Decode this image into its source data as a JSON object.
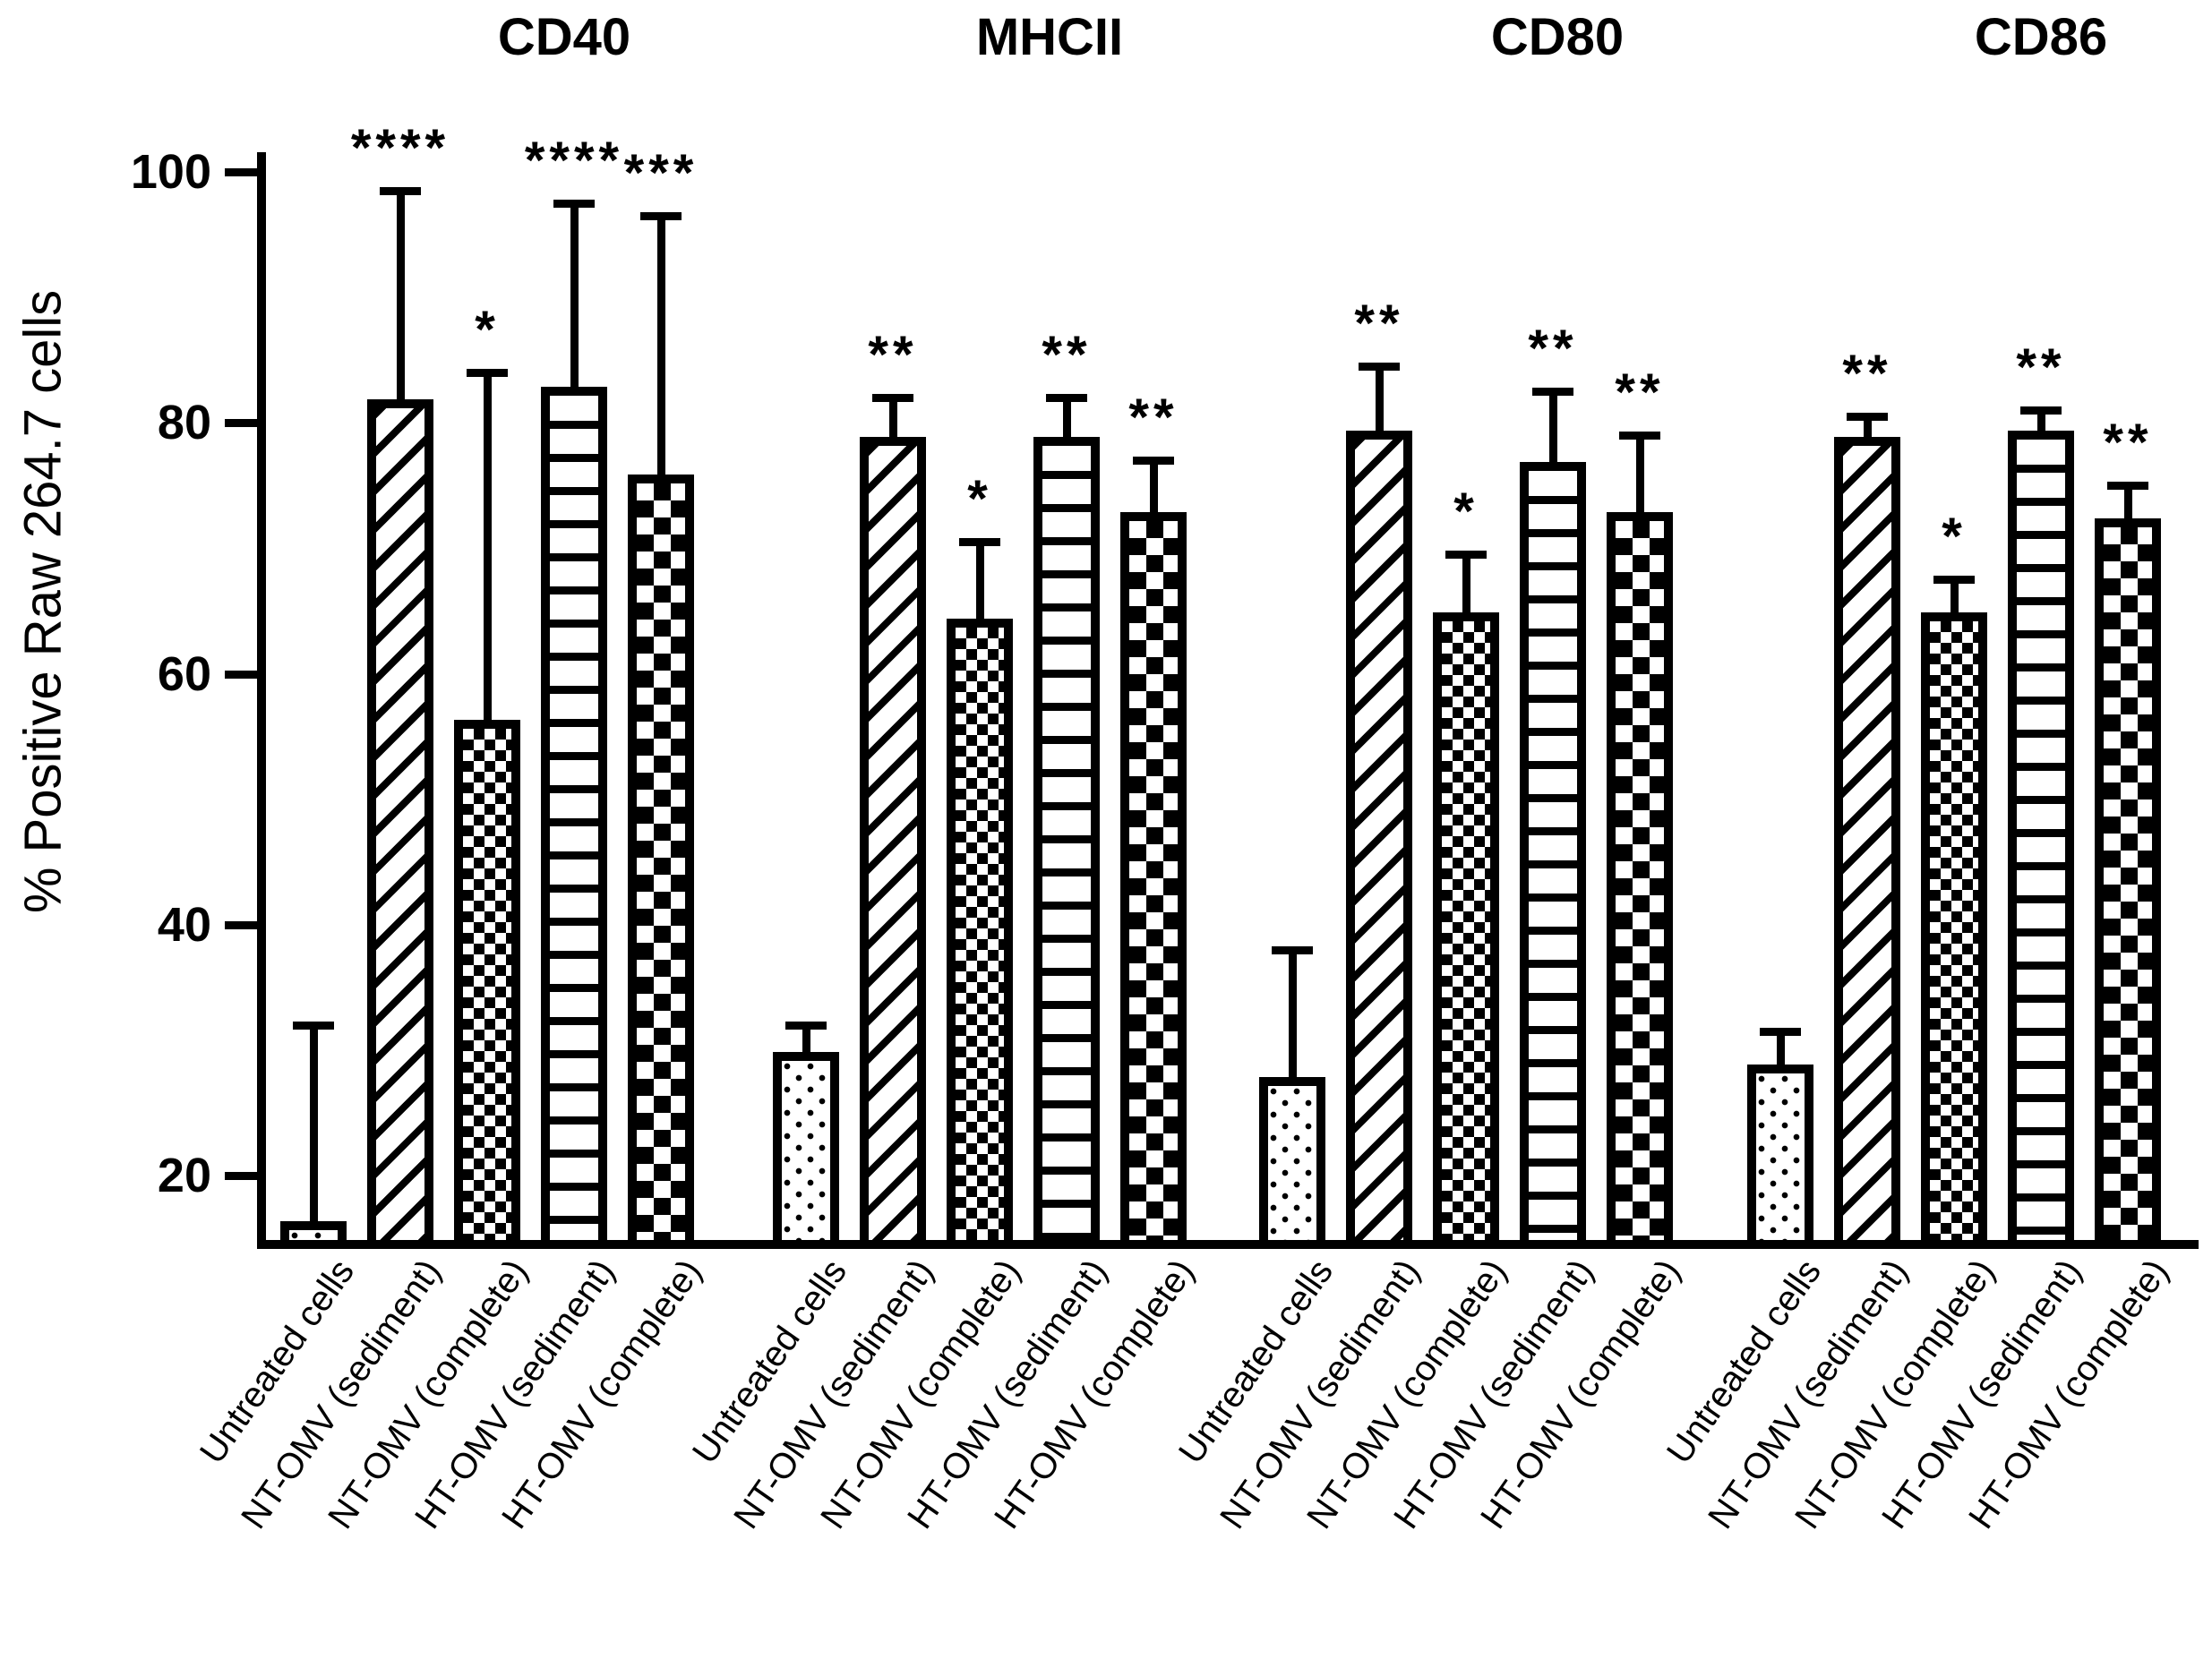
{
  "figure": {
    "background": "#ffffff",
    "ink_color": "#000000"
  },
  "chart_data": {
    "type": "bar",
    "title": "",
    "ylabel": "% Positive Raw 264.7 cells",
    "ylim": [
      15,
      100
    ],
    "yticks": [
      100,
      80,
      60,
      40,
      20
    ],
    "grid": false,
    "legend_position": "none",
    "error_bars": "upper only, capped",
    "categories": [
      "Untreated cells",
      "NT-OMV (sediment)",
      "NT-OMV (complete)",
      "HT-OMV (sediment)",
      "HT-OMV (complete)"
    ],
    "bar_patterns": [
      "sparse-dots",
      "diagonal-hatch",
      "small-checkerboard",
      "horizontal-lines",
      "large-checkerboard"
    ],
    "groups": [
      {
        "name": "CD40",
        "bars": [
          {
            "label": "Untreated cells",
            "value": 16,
            "err_top": 32,
            "sig": ""
          },
          {
            "label": "NT-OMV (sediment)",
            "value": 81.5,
            "err_top": 98.5,
            "sig": "****"
          },
          {
            "label": "NT-OMV (complete)",
            "value": 56,
            "err_top": 84,
            "sig": "*"
          },
          {
            "label": "HT-OMV (sediment)",
            "value": 82.5,
            "err_top": 97.5,
            "sig": "****"
          },
          {
            "label": "HT-OMV (complete)",
            "value": 75.5,
            "err_top": 96.5,
            "sig": "***"
          }
        ]
      },
      {
        "name": "MHCII",
        "bars": [
          {
            "label": "Untreated cells",
            "value": 29.5,
            "err_top": 32,
            "sig": ""
          },
          {
            "label": "NT-OMV (sediment)",
            "value": 78.5,
            "err_top": 82,
            "sig": "**"
          },
          {
            "label": "NT-OMV (complete)",
            "value": 64,
            "err_top": 70.5,
            "sig": "*"
          },
          {
            "label": "HT-OMV (sediment)",
            "value": 78.5,
            "err_top": 82,
            "sig": "**"
          },
          {
            "label": "HT-OMV (complete)",
            "value": 72.5,
            "err_top": 77,
            "sig": "**"
          }
        ]
      },
      {
        "name": "CD80",
        "bars": [
          {
            "label": "Untreated cells",
            "value": 27.5,
            "err_top": 38,
            "sig": ""
          },
          {
            "label": "NT-OMV (sediment)",
            "value": 79,
            "err_top": 84.5,
            "sig": "**"
          },
          {
            "label": "NT-OMV (complete)",
            "value": 64.5,
            "err_top": 69.5,
            "sig": "*"
          },
          {
            "label": "HT-OMV (sediment)",
            "value": 76.5,
            "err_top": 82.5,
            "sig": "**"
          },
          {
            "label": "HT-OMV (complete)",
            "value": 72.5,
            "err_top": 79,
            "sig": "**"
          }
        ]
      },
      {
        "name": "CD86",
        "bars": [
          {
            "label": "Untreated cells",
            "value": 28.5,
            "err_top": 31.5,
            "sig": ""
          },
          {
            "label": "NT-OMV (sediment)",
            "value": 78.5,
            "err_top": 80.5,
            "sig": "**"
          },
          {
            "label": "NT-OMV (complete)",
            "value": 64.5,
            "err_top": 67.5,
            "sig": "*"
          },
          {
            "label": "HT-OMV (sediment)",
            "value": 79,
            "err_top": 81,
            "sig": "**"
          },
          {
            "label": "HT-OMV (complete)",
            "value": 72,
            "err_top": 75,
            "sig": "**"
          }
        ]
      }
    ]
  }
}
